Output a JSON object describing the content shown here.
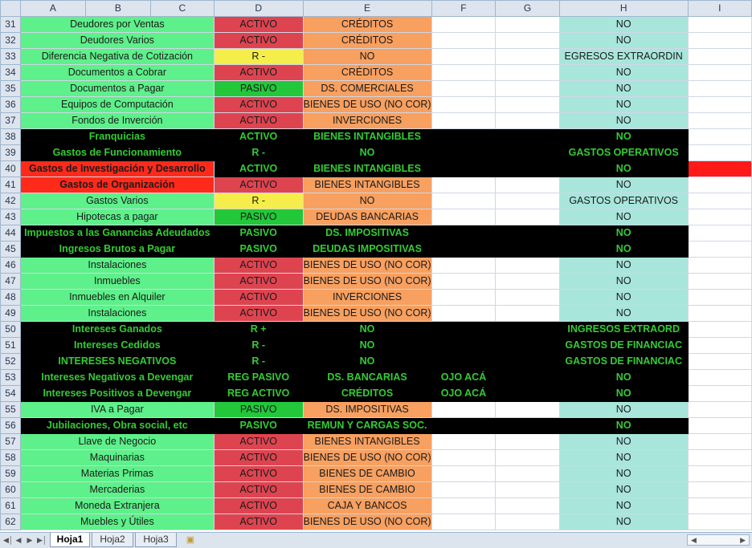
{
  "columns": [
    "A",
    "B",
    "C",
    "D",
    "E",
    "F",
    "G",
    "H",
    "I"
  ],
  "rows": [
    {
      "n": "31",
      "a": "Deudores por Ventas",
      "d": "ACTIVO",
      "e": "CRÉDITOS",
      "f": "",
      "g": "",
      "h": "NO",
      "s": "n"
    },
    {
      "n": "32",
      "a": "Deudores Varios",
      "d": "ACTIVO",
      "e": "CRÉDITOS",
      "f": "",
      "g": "",
      "h": "NO",
      "s": "n"
    },
    {
      "n": "33",
      "a": "Diferencia Negativa de Cotización",
      "d": "R -",
      "e": "NO",
      "f": "",
      "g": "",
      "h": "EGRESOS EXTRAORDIN",
      "s": "y"
    },
    {
      "n": "34",
      "a": "Documentos a Cobrar",
      "d": "ACTIVO",
      "e": "CRÉDITOS",
      "f": "",
      "g": "",
      "h": "NO",
      "s": "n"
    },
    {
      "n": "35",
      "a": "Documentos a Pagar",
      "d": "PASIVO",
      "e": "DS. COMERCIALES",
      "f": "",
      "g": "",
      "h": "NO",
      "s": "p"
    },
    {
      "n": "36",
      "a": "Equipos de Computación",
      "d": "ACTIVO",
      "e": "BIENES DE USO (NO COR)",
      "f": "",
      "g": "",
      "h": "NO",
      "s": "n"
    },
    {
      "n": "37",
      "a": "Fondos de Inverción",
      "d": "ACTIVO",
      "e": "INVERCIONES",
      "f": "",
      "g": "",
      "h": "NO",
      "s": "n"
    },
    {
      "n": "38",
      "a": "Franquicias",
      "d": "ACTIVO",
      "e": "BIENES INTANGIBLES",
      "f": "",
      "g": "",
      "h": "NO",
      "s": "b"
    },
    {
      "n": "39",
      "a": "Gastos de Funcionamiento",
      "d": "R -",
      "e": "NO",
      "f": "",
      "g": "",
      "h": "GASTOS OPERATIVOS",
      "s": "b"
    },
    {
      "n": "40",
      "a": "Gastos de Investigación y Desarrollo",
      "d": "ACTIVO",
      "e": "BIENES INTANGIBLES",
      "f": "",
      "g": "",
      "h": "NO",
      "s": "br"
    },
    {
      "n": "41",
      "a": "Gastos de Organización",
      "d": "ACTIVO",
      "e": "BIENES INTANGIBLES",
      "f": "",
      "g": "",
      "h": "NO",
      "s": "r"
    },
    {
      "n": "42",
      "a": "Gastos Varios",
      "d": "R -",
      "e": "NO",
      "f": "",
      "g": "",
      "h": "GASTOS OPERATIVOS",
      "s": "y"
    },
    {
      "n": "43",
      "a": "Hipotecas a pagar",
      "d": "PASIVO",
      "e": "DEUDAS BANCARIAS",
      "f": "",
      "g": "",
      "h": "NO",
      "s": "p"
    },
    {
      "n": "44",
      "a": "Impuestos a las Ganancias Adeudados",
      "d": "PASIVO",
      "e": "DS. IMPOSITIVAS",
      "f": "",
      "g": "",
      "h": "NO",
      "s": "b"
    },
    {
      "n": "45",
      "a": "Ingresos Brutos a Pagar",
      "d": "PASIVO",
      "e": "DEUDAS IMPOSITIVAS",
      "f": "",
      "g": "",
      "h": "NO",
      "s": "b"
    },
    {
      "n": "46",
      "a": "Instalaciones",
      "d": "ACTIVO",
      "e": "BIENES DE USO (NO COR)",
      "f": "",
      "g": "",
      "h": "NO",
      "s": "n"
    },
    {
      "n": "47",
      "a": "Inmuebles",
      "d": "ACTIVO",
      "e": "BIENES DE USO (NO COR)",
      "f": "",
      "g": "",
      "h": "NO",
      "s": "n"
    },
    {
      "n": "48",
      "a": "Inmuebles en Alquiler",
      "d": "ACTIVO",
      "e": "INVERCIONES",
      "f": "",
      "g": "",
      "h": "NO",
      "s": "n"
    },
    {
      "n": "49",
      "a": "Instalaciones",
      "d": "ACTIVO",
      "e": "BIENES DE USO (NO COR)",
      "f": "",
      "g": "",
      "h": "NO",
      "s": "n"
    },
    {
      "n": "50",
      "a": "Intereses Ganados",
      "d": "R +",
      "e": "NO",
      "f": "",
      "g": "",
      "h": "INGRESOS EXTRAORD",
      "s": "b"
    },
    {
      "n": "51",
      "a": "Intereses Cedidos",
      "d": "R -",
      "e": "NO",
      "f": "",
      "g": "",
      "h": "GASTOS DE FINANCIAC",
      "s": "b"
    },
    {
      "n": "52",
      "a": "INTERESES NEGATIVOS",
      "d": "R -",
      "e": "NO",
      "f": "",
      "g": "",
      "h": "GASTOS DE FINANCIAC",
      "s": "b"
    },
    {
      "n": "53",
      "a": "Intereses Negativos a Devengar",
      "d": "REG PASIVO",
      "e": "DS. BANCARIAS",
      "f": "OJO ACÁ",
      "g": "",
      "h": "NO",
      "s": "b"
    },
    {
      "n": "54",
      "a": "Intereses Positivos a Devengar",
      "d": "REG ACTIVO",
      "e": "CRÉDITOS",
      "f": "OJO ACÁ",
      "g": "",
      "h": "NO",
      "s": "b"
    },
    {
      "n": "55",
      "a": "IVA a Pagar",
      "d": "PASIVO",
      "e": "DS. IMPOSITIVAS",
      "f": "",
      "g": "",
      "h": "NO",
      "s": "p"
    },
    {
      "n": "56",
      "a": "Jubilaciones, Obra social, etc",
      "d": "PASIVO",
      "e": "REMUN Y CARGAS SOC.",
      "f": "",
      "g": "",
      "h": "NO",
      "s": "b"
    },
    {
      "n": "57",
      "a": "Llave de Negocio",
      "d": "ACTIVO",
      "e": "BIENES INTANGIBLES",
      "f": "",
      "g": "",
      "h": "NO",
      "s": "n"
    },
    {
      "n": "58",
      "a": "Maquinarias",
      "d": "ACTIVO",
      "e": "BIENES DE USO (NO COR)",
      "f": "",
      "g": "",
      "h": "NO",
      "s": "n"
    },
    {
      "n": "59",
      "a": "Materias Primas",
      "d": "ACTIVO",
      "e": "BIENES DE CAMBIO",
      "f": "",
      "g": "",
      "h": "NO",
      "s": "n"
    },
    {
      "n": "60",
      "a": "Mercaderias",
      "d": "ACTIVO",
      "e": "BIENES DE CAMBIO",
      "f": "",
      "g": "",
      "h": "NO",
      "s": "n"
    },
    {
      "n": "61",
      "a": "Moneda Extranjera",
      "d": "ACTIVO",
      "e": "CAJA Y BANCOS",
      "f": "",
      "g": "",
      "h": "NO",
      "s": "n"
    },
    {
      "n": "62",
      "a": "Muebles y Útiles",
      "d": "ACTIVO",
      "e": "BIENES DE USO (NO COR)",
      "f": "",
      "g": "",
      "h": "NO",
      "s": "n"
    }
  ],
  "sheets": [
    "Hoja1",
    "Hoja2",
    "Hoja3"
  ],
  "active_sheet": "Hoja1",
  "icons": {
    "nav_first": "first-sheet-icon",
    "nav_prev": "prev-sheet-icon",
    "nav_next": "next-sheet-icon",
    "nav_last": "last-sheet-icon",
    "new_sheet": "insert-sheet-icon"
  },
  "colors": {
    "light_green": "#5ef08a",
    "red": "#de4450",
    "yellow": "#f5ee4a",
    "green": "#22c83a",
    "orange": "#f7a060",
    "teal": "#a8e6dc",
    "black_row_text": "#33cc33",
    "bright_red": "#ff2a1a"
  }
}
